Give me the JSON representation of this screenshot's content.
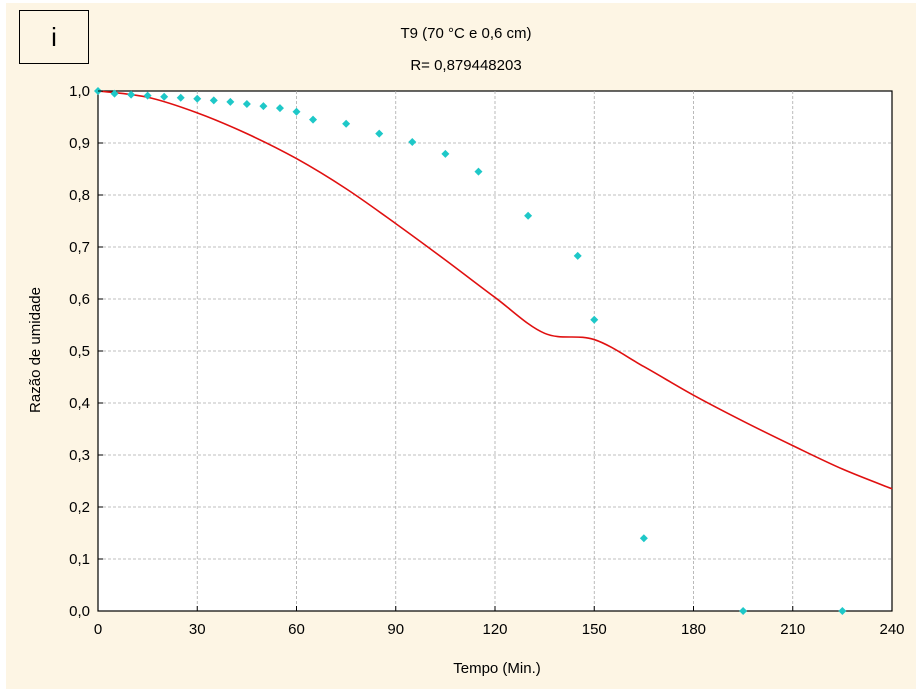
{
  "panel_label": "i",
  "chart_data": {
    "type": "scatter",
    "title": "T9 (70 °C e 0,6 cm)",
    "subtitle": "R= 0,879448203",
    "xlabel": "Tempo (Min.)",
    "ylabel": "Razão de umidade",
    "xlim": [
      0,
      240
    ],
    "ylim": [
      0,
      1.0
    ],
    "x_ticks": [
      "0",
      "30",
      "60",
      "90",
      "120",
      "150",
      "180",
      "210",
      "240"
    ],
    "y_ticks": [
      "0,0",
      "0,1",
      "0,2",
      "0,3",
      "0,4",
      "0,5",
      "0,6",
      "0,7",
      "0,8",
      "0,9",
      "1,0"
    ],
    "grid": true,
    "colors": {
      "points": "#1ec8c8",
      "curve": "#e01010",
      "background": "#fdf5e4"
    },
    "series": [
      {
        "type": "scatter",
        "x": [
          0,
          5,
          10,
          15,
          20,
          25,
          30,
          35,
          40,
          45,
          50,
          55,
          60,
          65,
          75,
          85,
          95,
          105,
          115,
          130,
          145,
          150,
          165,
          195,
          225
        ],
        "y": [
          1.0,
          0.995,
          0.993,
          0.991,
          0.989,
          0.987,
          0.985,
          0.982,
          0.979,
          0.975,
          0.971,
          0.967,
          0.96,
          0.945,
          0.937,
          0.918,
          0.902,
          0.879,
          0.845,
          0.76,
          0.683,
          0.56,
          0.14,
          0.0,
          0.0
        ]
      },
      {
        "type": "line",
        "x": [
          0,
          15,
          30,
          45,
          60,
          75,
          90,
          105,
          120,
          135,
          150,
          165,
          180,
          195,
          210,
          225,
          240
        ],
        "y": [
          1.0,
          0.988,
          0.958,
          0.918,
          0.87,
          0.812,
          0.745,
          0.675,
          0.603,
          0.534,
          0.522,
          0.47,
          0.415,
          0.365,
          0.318,
          0.273,
          0.235
        ]
      }
    ]
  }
}
